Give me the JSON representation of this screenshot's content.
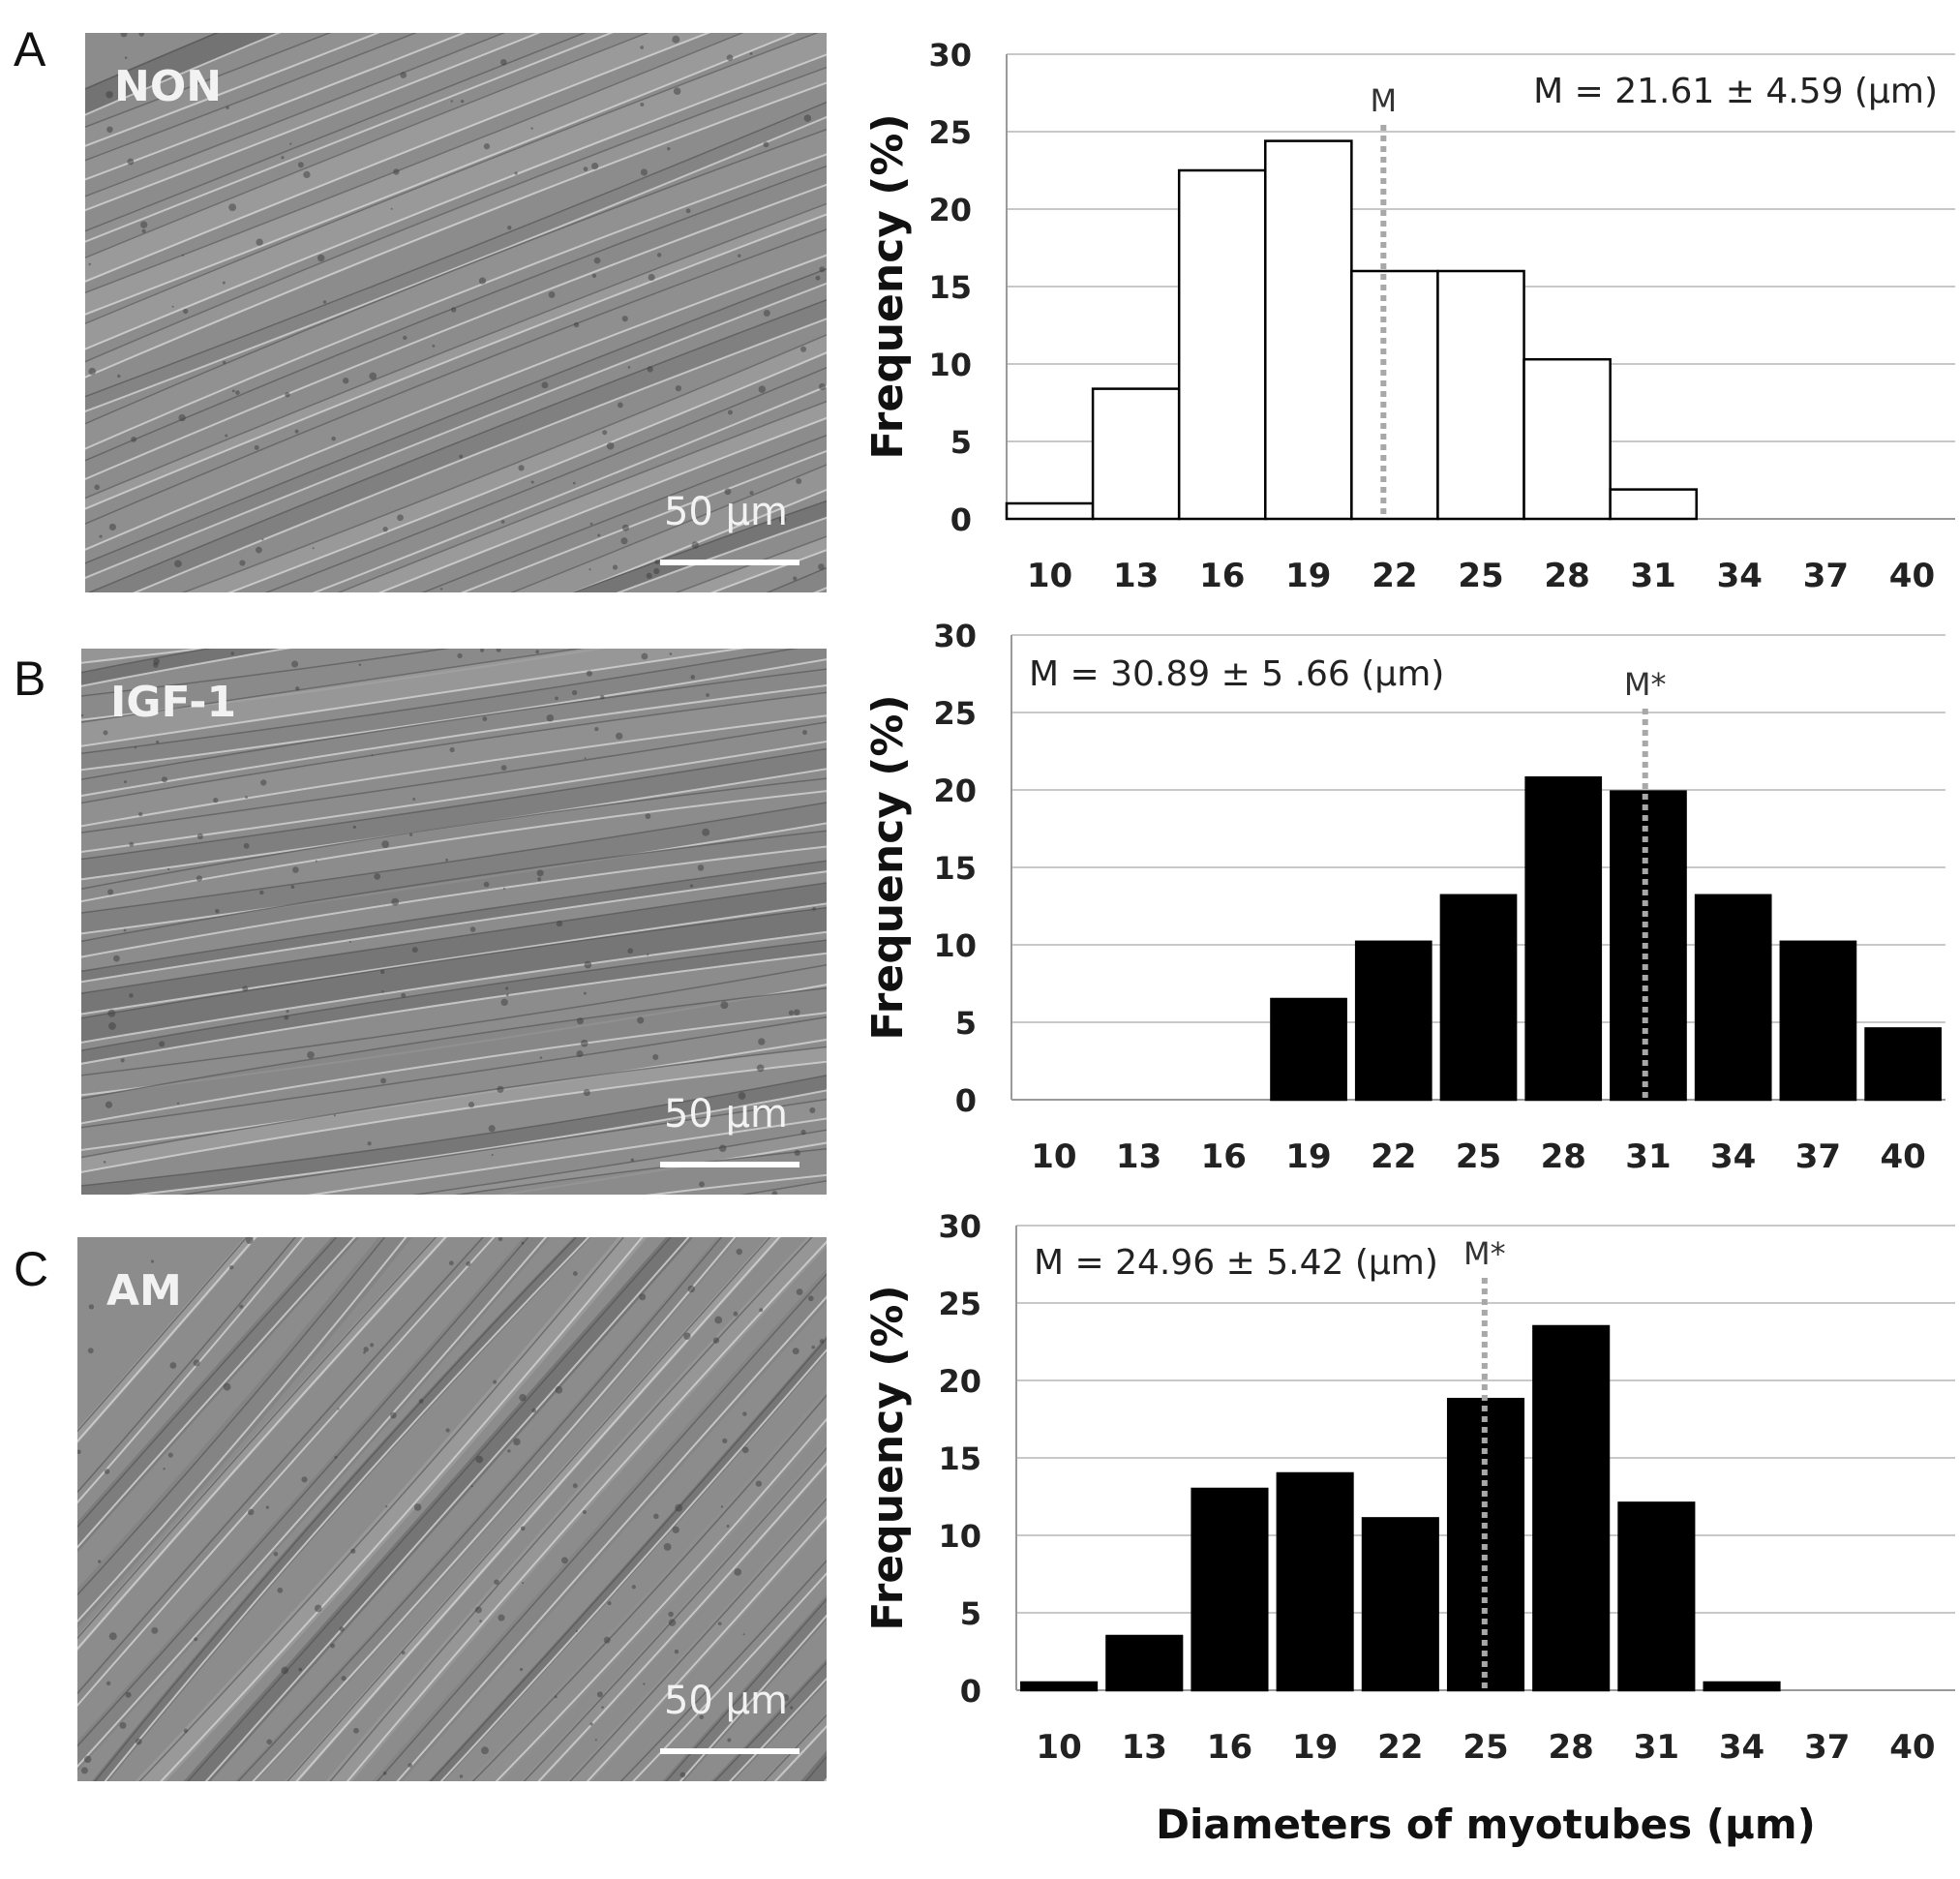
{
  "panels": [
    {
      "letter": "A",
      "condition": "NON",
      "scale_bar": "50 µm"
    },
    {
      "letter": "B",
      "condition": "IGF-1",
      "scale_bar": "50 µm"
    },
    {
      "letter": "C",
      "condition": "AM",
      "scale_bar": "50 µm"
    }
  ],
  "chart_data": [
    {
      "type": "bar",
      "title": "",
      "categories": [
        "10",
        "13",
        "16",
        "19",
        "22",
        "25",
        "28",
        "31",
        "34",
        "37",
        "40"
      ],
      "values": [
        1,
        8.4,
        22.5,
        24.4,
        16,
        16,
        10.3,
        1.9,
        0,
        0,
        0
      ],
      "ylabel": "Frequency (%)",
      "xlabel": "",
      "ylim": [
        0,
        30
      ],
      "yticks": [
        "0",
        "5",
        "10",
        "15",
        "20",
        "25",
        "30"
      ],
      "bar_color": "#ffffff",
      "bar_stroke": "#000000",
      "bins_offset": "between",
      "mean_line": {
        "label": "M",
        "x": 21.61
      },
      "annotation": "M = 21.61 ± 4.59 (µm)",
      "annotation_position": "top-right",
      "grid": true
    },
    {
      "type": "bar",
      "title": "",
      "categories": [
        "10",
        "13",
        "16",
        "19",
        "22",
        "25",
        "28",
        "31",
        "34",
        "37",
        "40"
      ],
      "values": [
        0,
        0,
        0,
        6.5,
        10.2,
        13.2,
        20.8,
        19.9,
        13.2,
        10.2,
        4.6
      ],
      "ylabel": "Frequency (%)",
      "xlabel": "",
      "ylim": [
        0,
        30
      ],
      "yticks": [
        "0",
        "5",
        "10",
        "15",
        "20",
        "25",
        "30"
      ],
      "bar_color": "#000000",
      "bar_stroke": "#000000",
      "bins_offset": "on",
      "mean_line": {
        "label": "M*",
        "x": 30.89
      },
      "annotation": "M = 30.89 ± 5 .66  (µm)",
      "annotation_position": "top-left",
      "grid": true
    },
    {
      "type": "bar",
      "title": "",
      "categories": [
        "10",
        "13",
        "16",
        "19",
        "22",
        "25",
        "28",
        "31",
        "34",
        "37",
        "40"
      ],
      "values": [
        0.5,
        3.5,
        13,
        14,
        11.1,
        18.8,
        23.5,
        12.1,
        0.5,
        0,
        0
      ],
      "ylabel": "Frequency (%)",
      "xlabel": "Diameters of myotubes (µm)",
      "ylim": [
        0,
        30
      ],
      "yticks": [
        "0",
        "5",
        "10",
        "15",
        "20",
        "25",
        "30"
      ],
      "bar_color": "#000000",
      "bar_stroke": "#000000",
      "bins_offset": "on",
      "mean_line": {
        "label": "M*",
        "x": 24.96
      },
      "annotation": "M = 24.96 ± 5.42 (µm)",
      "annotation_position": "top-left",
      "grid": true
    }
  ]
}
